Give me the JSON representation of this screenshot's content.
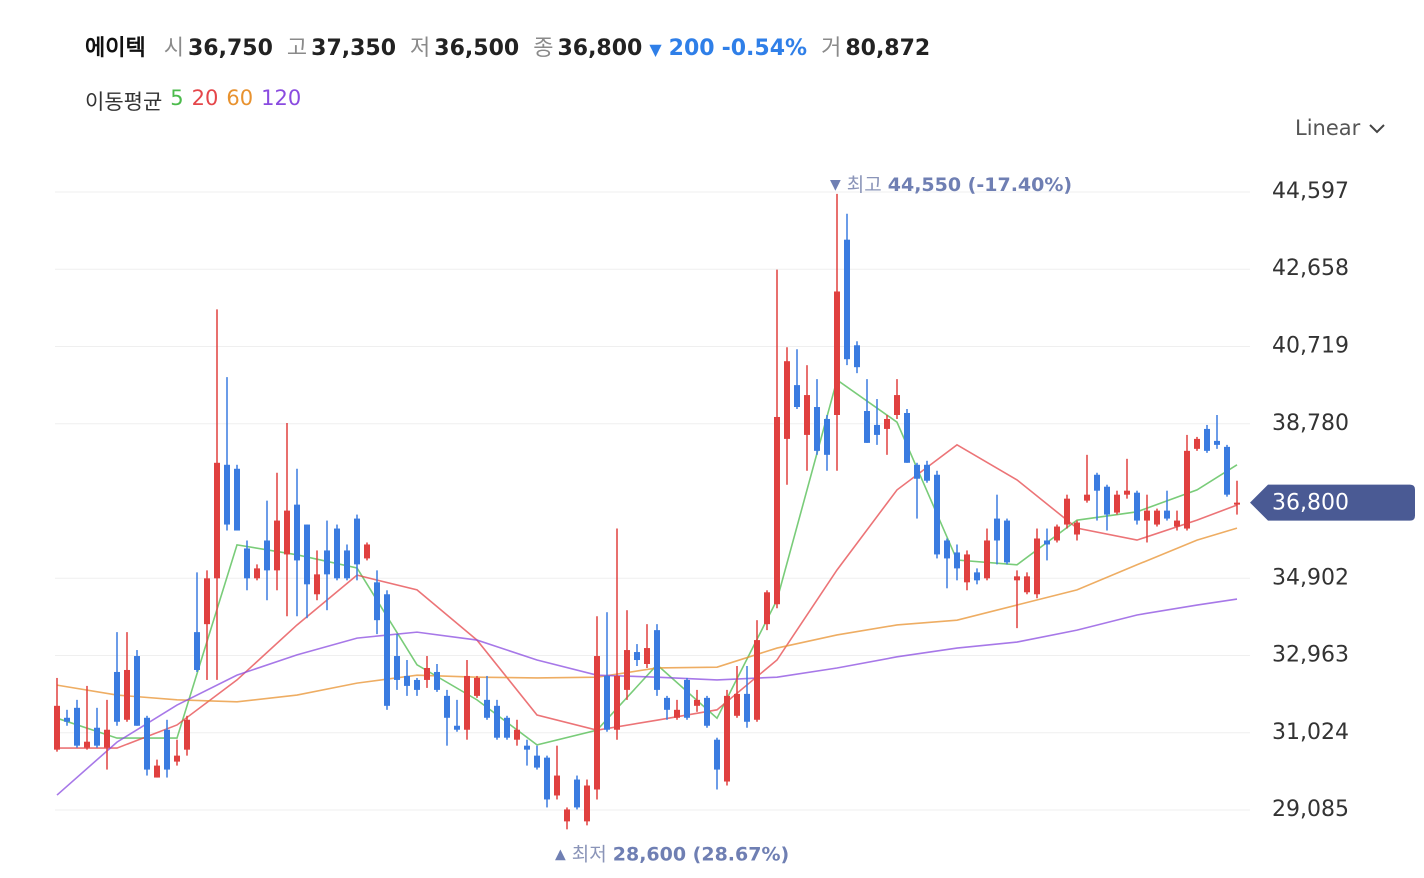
{
  "header": {
    "name": "에이텍",
    "fields": [
      {
        "label": "시",
        "value": "36,750"
      },
      {
        "label": "고",
        "value": "37,350"
      },
      {
        "label": "저",
        "value": "36,500"
      },
      {
        "label": "종",
        "value": "36,800"
      }
    ],
    "change": {
      "arrow": "▼",
      "amount": "200",
      "percent": "-0.54%"
    },
    "volume": {
      "label": "거",
      "value": "80,872"
    }
  },
  "ma_legend_title": "이동평균",
  "scale_selector": "Linear",
  "chart_data": {
    "type": "candlestick",
    "up_color": "#e0403f",
    "down_color": "#3a7be0",
    "ylim": [
      28458,
      45149
    ],
    "yticks": [
      {
        "value": 29085,
        "label": "29,085"
      },
      {
        "value": 31024,
        "label": "31,024"
      },
      {
        "value": 32963,
        "label": "32,963"
      },
      {
        "value": 34902,
        "label": "34,902"
      },
      {
        "value": 38780,
        "label": "38,780"
      },
      {
        "value": 40719,
        "label": "40,719"
      },
      {
        "value": 42658,
        "label": "42,658"
      },
      {
        "value": 44597,
        "label": "44,597"
      }
    ],
    "grid": true,
    "last_price_label": "36,800",
    "high_annotation": {
      "arrow": "▼",
      "label": "최고",
      "value": "44,550 (-17.40%)"
    },
    "low_annotation": {
      "arrow": "▲",
      "label": "최저",
      "value": "28,600 (28.67%)"
    },
    "open": [
      30600,
      31400,
      31650,
      30650,
      31150,
      30650,
      32550,
      31350,
      32950,
      31400,
      29900,
      31100,
      30300,
      30600,
      33550,
      33750,
      34900,
      37750,
      37650,
      35650,
      34900,
      35850,
      35100,
      35500,
      36750,
      36250,
      34500,
      35600,
      36150,
      35600,
      36400,
      35400,
      34800,
      34500,
      32950,
      32450,
      32350,
      32350,
      32550,
      31950,
      31200,
      31100,
      31950,
      31850,
      31700,
      31400,
      30850,
      30700,
      30450,
      30400,
      29450,
      28800,
      29850,
      28800,
      29600,
      32450,
      31100,
      32100,
      33050,
      32750,
      33600,
      31900,
      31400,
      32350,
      31700,
      31900,
      30850,
      29800,
      31450,
      32000,
      31350,
      33750,
      34250,
      38400,
      39750,
      38500,
      39200,
      38900,
      39000,
      43400,
      40750,
      39100,
      38750,
      38650,
      39000,
      39050,
      37750,
      37750,
      37500,
      35850,
      35550,
      34800,
      35050,
      34900,
      36400,
      36350,
      34850,
      34550,
      34500,
      35850,
      35850,
      36250,
      36000,
      36850,
      37500,
      37200,
      36550,
      37000,
      37050,
      36350,
      36250,
      36600,
      36200,
      36150,
      38150,
      38650,
      38350,
      38200,
      36750
    ],
    "high": [
      32400,
      31600,
      31850,
      32200,
      31650,
      31850,
      33550,
      33550,
      33100,
      31450,
      30350,
      31350,
      30850,
      31450,
      35050,
      35100,
      41650,
      39950,
      37750,
      35850,
      35250,
      36850,
      37550,
      38800,
      37650,
      36250,
      35600,
      36350,
      36250,
      35750,
      36500,
      35800,
      35100,
      34600,
      33500,
      32850,
      32400,
      32950,
      32750,
      32100,
      31850,
      32850,
      32450,
      32450,
      31850,
      31450,
      31350,
      30850,
      30700,
      30450,
      30700,
      29150,
      29950,
      29850,
      33950,
      34050,
      36150,
      34100,
      33250,
      33750,
      33750,
      31950,
      31850,
      32400,
      32100,
      31950,
      30900,
      32100,
      32700,
      32700,
      33850,
      34600,
      42650,
      40700,
      40650,
      40250,
      39900,
      39000,
      44550,
      44050,
      40850,
      39900,
      39400,
      39000,
      39900,
      39150,
      37800,
      37850,
      37600,
      35900,
      35750,
      35600,
      35150,
      36150,
      37000,
      36400,
      35100,
      35050,
      36150,
      36150,
      36250,
      37000,
      36350,
      38000,
      37550,
      37250,
      37100,
      37900,
      37100,
      37000,
      36650,
      37100,
      36600,
      38500,
      38450,
      38750,
      39000,
      38250,
      37350
    ],
    "low": [
      30550,
      31200,
      30650,
      30600,
      30650,
      30100,
      31200,
      31300,
      31200,
      29950,
      29900,
      29900,
      30200,
      30450,
      32550,
      32350,
      32350,
      36100,
      36100,
      34600,
      34850,
      34350,
      34600,
      33950,
      33950,
      33900,
      34350,
      34100,
      34850,
      34850,
      34850,
      35350,
      33500,
      31600,
      32100,
      31950,
      31950,
      32150,
      32050,
      30700,
      31050,
      30850,
      31900,
      31350,
      30850,
      30850,
      30700,
      30200,
      30100,
      29150,
      29350,
      28600,
      29100,
      28700,
      29350,
      31050,
      30850,
      31850,
      32700,
      32650,
      31950,
      31350,
      31350,
      31350,
      31550,
      31150,
      29600,
      29700,
      31400,
      31150,
      31300,
      33600,
      34150,
      37250,
      39150,
      37600,
      38000,
      37600,
      37600,
      40250,
      40050,
      38300,
      38250,
      38000,
      38900,
      37800,
      36400,
      37300,
      35400,
      34650,
      34850,
      34600,
      34750,
      34850,
      35250,
      35250,
      33650,
      34500,
      34400,
      35350,
      35800,
      36150,
      35850,
      36800,
      36350,
      36100,
      36500,
      36900,
      36250,
      35800,
      36200,
      36350,
      36100,
      36100,
      38100,
      38050,
      38150,
      36950,
      36500
    ],
    "close": [
      31700,
      31300,
      30700,
      30800,
      30700,
      31100,
      31300,
      32600,
      31200,
      30100,
      30200,
      30100,
      30450,
      31350,
      32600,
      34900,
      37800,
      36250,
      36100,
      34900,
      35150,
      35100,
      36350,
      36600,
      35350,
      34750,
      35000,
      35000,
      34900,
      34900,
      35250,
      35750,
      33850,
      31700,
      32350,
      32200,
      32100,
      32650,
      32100,
      31400,
      31100,
      32450,
      32400,
      31400,
      30900,
      30900,
      31100,
      30600,
      30150,
      29350,
      29950,
      29100,
      29150,
      29700,
      32950,
      31100,
      32450,
      33100,
      32850,
      33150,
      32100,
      31600,
      31600,
      31400,
      31850,
      31200,
      30100,
      31950,
      32000,
      31300,
      33350,
      34550,
      38950,
      40350,
      39200,
      39500,
      38100,
      38000,
      42100,
      40400,
      40200,
      38300,
      38500,
      38900,
      39500,
      37800,
      37400,
      37350,
      35500,
      35400,
      35150,
      35500,
      34850,
      35850,
      35850,
      35300,
      34950,
      34950,
      35900,
      35750,
      36200,
      36900,
      36300,
      37000,
      37100,
      36500,
      37000,
      37100,
      36350,
      36600,
      36600,
      36400,
      36350,
      38100,
      38400,
      38100,
      38250,
      37000,
      36800
    ],
    "series": [
      {
        "name": "5",
        "color": "#4cbb4c",
        "x": [
          0,
          6,
          12,
          18,
          24,
          30,
          36,
          42,
          48,
          54,
          60,
          66,
          72,
          78,
          84,
          90,
          96,
          102,
          108,
          114,
          118
        ],
        "values": [
          31390,
          30890,
          30890,
          35740,
          35490,
          35160,
          32730,
          31850,
          30720,
          31090,
          32730,
          31390,
          34360,
          39880,
          38820,
          35360,
          35240,
          36360,
          36570,
          37120,
          37750
        ]
      },
      {
        "name": "20",
        "color": "#e5464a",
        "x": [
          0,
          6,
          12,
          18,
          24,
          30,
          36,
          42,
          48,
          54,
          60,
          66,
          72,
          78,
          84,
          90,
          96,
          102,
          108,
          114,
          118
        ],
        "values": [
          30640,
          30640,
          31220,
          32350,
          33730,
          34980,
          34610,
          33350,
          31470,
          31090,
          31340,
          31600,
          32850,
          35110,
          37120,
          38250,
          37370,
          36160,
          35860,
          36360,
          36740
        ]
      },
      {
        "name": "60",
        "color": "#e8922f",
        "x": [
          0,
          6,
          12,
          18,
          24,
          30,
          36,
          42,
          48,
          54,
          60,
          66,
          72,
          78,
          84,
          90,
          96,
          102,
          108,
          114,
          118
        ],
        "values": [
          32220,
          31970,
          31850,
          31800,
          31970,
          32270,
          32470,
          32420,
          32400,
          32420,
          32650,
          32670,
          33150,
          33480,
          33730,
          33850,
          34230,
          34610,
          35240,
          35860,
          36160
        ]
      },
      {
        "name": "120",
        "color": "#8a4be0",
        "x": [
          0,
          6,
          12,
          18,
          24,
          30,
          36,
          42,
          48,
          54,
          60,
          66,
          72,
          78,
          84,
          90,
          96,
          102,
          108,
          114,
          118
        ],
        "values": [
          29460,
          30790,
          31720,
          32470,
          32980,
          33400,
          33550,
          33350,
          32850,
          32470,
          32420,
          32350,
          32420,
          32650,
          32930,
          33150,
          33300,
          33600,
          33980,
          34230,
          34380
        ]
      }
    ]
  }
}
